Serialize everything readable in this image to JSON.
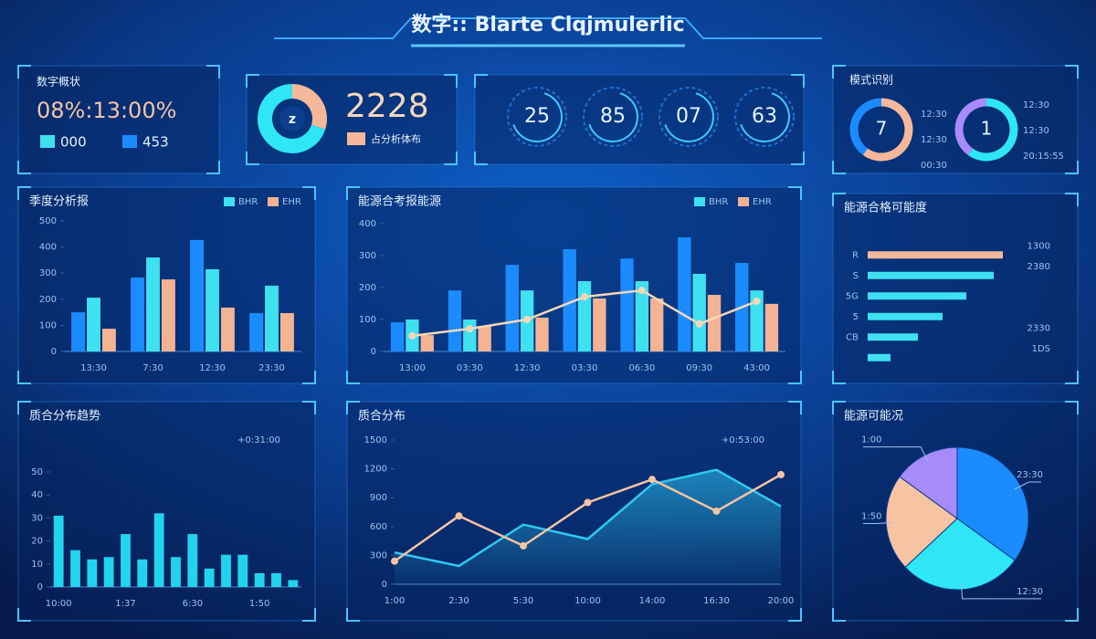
{
  "header": {
    "title": "数字:: Blarte Clqjmulerlic"
  },
  "stats": {
    "title": "数字概状",
    "value": "08%:13:00%",
    "legend": [
      "000",
      "453"
    ]
  },
  "kpi": {
    "center": "z",
    "value": "2228",
    "label": "占分析体布"
  },
  "gauges": [
    "25",
    "85",
    "07",
    "63"
  ],
  "rings": {
    "title": "模式识别",
    "centers": [
      "7",
      "1"
    ],
    "labels_left": [
      "12:30",
      "12:30",
      "00:30"
    ],
    "labels_right": [
      "12:30",
      "12:30",
      "20:15:55"
    ]
  },
  "chart_data": [
    {
      "type": "bar",
      "title": "季度分析报",
      "categories": [
        "13:30",
        "7:30",
        "12:30",
        "23:30"
      ],
      "ylim": [
        0,
        500
      ],
      "yticks": [
        0,
        100,
        200,
        300,
        400,
        500
      ],
      "grid": false,
      "series": [
        {
          "color": "#1a8cff",
          "values": [
            150,
            283,
            427,
            147
          ]
        },
        {
          "name": "BHR",
          "color": "#3fe0f0",
          "values": [
            206,
            360,
            315,
            252
          ]
        },
        {
          "name": "EHR",
          "color": "#f4b393",
          "values": [
            87,
            276,
            168,
            147
          ]
        }
      ]
    },
    {
      "type": "bar",
      "title": "能源合考报能源",
      "categories": [
        "13:00",
        "03:30",
        "12:30",
        "03:30",
        "06:30",
        "09:30",
        "43:00"
      ],
      "ylim": [
        0,
        400
      ],
      "yticks": [
        0,
        100,
        200,
        300,
        400
      ],
      "grid": false,
      "series": [
        {
          "color": "#1a8cff",
          "values": [
            91,
            191,
            271,
            320,
            291,
            357,
            277
          ]
        },
        {
          "name": "BHR",
          "color": "#3fe0f0",
          "values": [
            100,
            100,
            191,
            220,
            220,
            243,
            191
          ]
        },
        {
          "name": "EHR",
          "color": "#f4b393",
          "values": [
            51,
            80,
            106,
            166,
            166,
            177,
            149
          ]
        },
        {
          "type": "line",
          "color": "#f6d7b8",
          "values": [
            49,
            71,
            100,
            171,
            191,
            86,
            157
          ]
        }
      ]
    },
    {
      "type": "hbar",
      "title": "能源合格可能度",
      "categories": [
        "R",
        "S",
        "5G",
        "5",
        "CB",
        null
      ],
      "values": [
        148,
        138,
        108,
        82,
        55,
        25
      ],
      "xlim": [
        0,
        160
      ],
      "colors": [
        "#f6b89a",
        "#3fe0f0",
        "#3fe0f0",
        "#3fe0f0",
        "#3fe0f0",
        "#3fe0f0"
      ],
      "annotations": [
        "1300",
        "2380",
        "2330",
        "1DS"
      ]
    },
    {
      "type": "bar",
      "title": "质合分布趋势",
      "annotation": "+0:31:00",
      "categories": [
        "10:00",
        null,
        null,
        null,
        "1:37",
        null,
        null,
        null,
        "6:30",
        null,
        null,
        null,
        "1:50",
        null,
        null
      ],
      "ylim": [
        0,
        50
      ],
      "yticks": [
        0,
        10,
        20,
        30,
        40,
        50
      ],
      "grid": false,
      "series": [
        {
          "color": "#22d3ee",
          "values": [
            31,
            16,
            12,
            13,
            23,
            12,
            32,
            13,
            23,
            8,
            14,
            14,
            6,
            6,
            3
          ]
        }
      ]
    },
    {
      "type": "line",
      "title": "质合分布",
      "annotation": "+0:53:00",
      "categories": [
        "1:00",
        "2:30",
        "5:30",
        "10:00",
        "14:00",
        "16:30",
        "20:00"
      ],
      "ylim": [
        0,
        1500
      ],
      "yticks": [
        0,
        300,
        600,
        900,
        1200,
        1500
      ],
      "grid": false,
      "series": [
        {
          "color": "#2ec8f0",
          "area": true,
          "values": [
            330,
            190,
            620,
            470,
            1040,
            1190,
            810
          ]
        },
        {
          "color": "#f6c4a3",
          "values": [
            240,
            710,
            400,
            850,
            1090,
            760,
            1140
          ]
        }
      ]
    },
    {
      "type": "pie",
      "title": "能源可能况",
      "categories": [
        "23:30",
        "12:30",
        "1:50",
        "1:00"
      ],
      "values": [
        35,
        28,
        22,
        15
      ],
      "colors": [
        "#1a8cff",
        "#2ee6f5",
        "#f6c4a3",
        "#a78bfa"
      ]
    }
  ]
}
